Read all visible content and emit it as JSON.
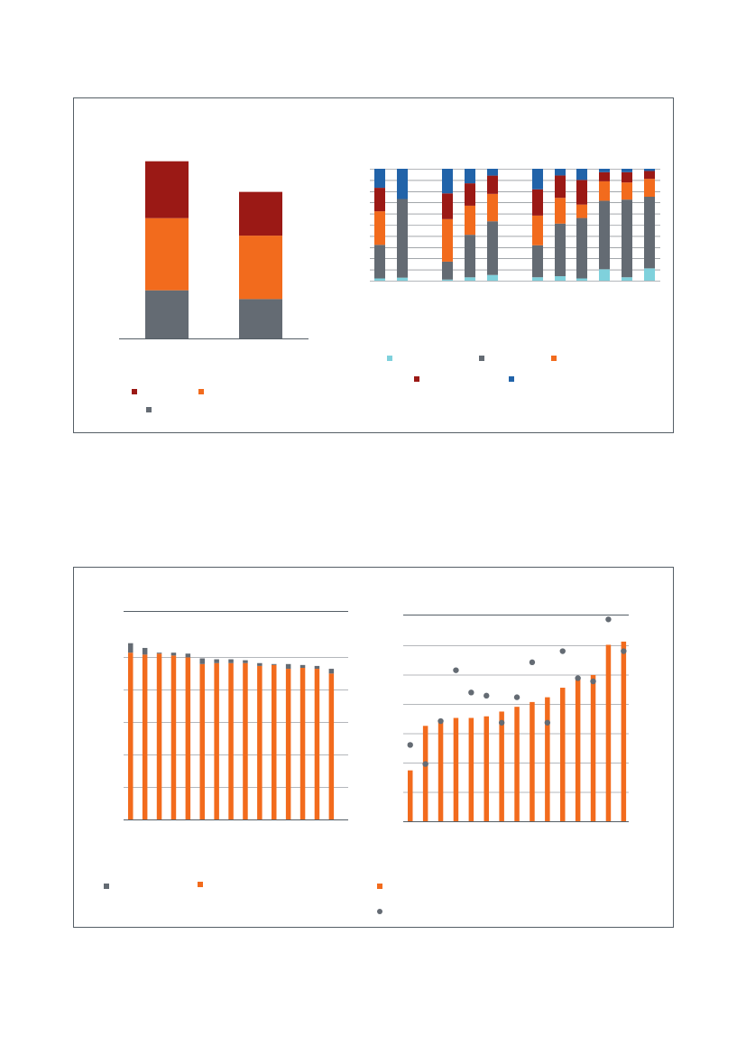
{
  "colors": {
    "dark_red": "#9b1915",
    "orange": "#f26b1d",
    "grey": "#646b73",
    "light_blue": "#7fd1dc",
    "blue": "#2163a9",
    "axis": "#555e66",
    "grid": "#6b7178"
  },
  "chart_data": [
    {
      "type": "bar",
      "stacked": true,
      "categories": [
        "",
        ""
      ],
      "series": [
        {
          "color_key": "grey",
          "values": [
            22,
            18
          ]
        },
        {
          "color_key": "orange",
          "values": [
            33,
            29
          ]
        },
        {
          "color_key": "dark_red",
          "values": [
            26,
            20
          ]
        }
      ],
      "ylim": [
        0,
        85
      ],
      "legend": "bottom-left"
    },
    {
      "type": "bar",
      "stacked": true,
      "percent": true,
      "groups": [
        2,
        3,
        6
      ],
      "categories": [
        "",
        "",
        "",
        "",
        "",
        "",
        "",
        "",
        "",
        "",
        ""
      ],
      "series": [
        {
          "color_key": "light_blue",
          "values": [
            2,
            1,
            1,
            3,
            5,
            3,
            4,
            2,
            10,
            3,
            11
          ]
        },
        {
          "color_key": "grey",
          "values": [
            30,
            26,
            16,
            38,
            47,
            28,
            47,
            54,
            60,
            68,
            64
          ]
        },
        {
          "color_key": "orange",
          "values": [
            30,
            0,
            38,
            26,
            24,
            26,
            23,
            12,
            17,
            15,
            16
          ]
        },
        {
          "color_key": "dark_red",
          "values": [
            21,
            0,
            23,
            20,
            16,
            23,
            20,
            22,
            8,
            9,
            7
          ]
        },
        {
          "color_key": "blue",
          "values": [
            17,
            10,
            22,
            13,
            6,
            18,
            6,
            10,
            3,
            3,
            2
          ]
        }
      ],
      "ylim": [
        0,
        100
      ],
      "legend": "bottom"
    },
    {
      "type": "bar",
      "stacked": true,
      "categories": [
        "",
        "",
        "",
        "",
        "",
        "",
        "",
        "",
        "",
        "",
        "",
        "",
        "",
        "",
        ""
      ],
      "series": [
        {
          "color_key": "orange",
          "values": [
            88,
            87,
            87.5,
            86.5,
            85.5,
            82,
            82.5,
            82.5,
            82.5,
            81,
            81.5,
            79.5,
            80,
            79.5,
            77
          ]
        },
        {
          "color_key": "grey",
          "values": [
            5,
            3.5,
            0.5,
            1.5,
            2,
            3,
            2,
            2,
            1.5,
            1.5,
            0.5,
            2.5,
            1.5,
            1.5,
            2.5
          ]
        }
      ],
      "ylim": [
        0,
        110
      ],
      "legend": "bottom"
    },
    {
      "type": "bar",
      "categories": [
        "",
        "",
        "",
        "",
        "",
        "",
        "",
        "",
        "",
        "",
        "",
        "",
        "",
        "",
        ""
      ],
      "series": [
        {
          "type": "bar",
          "color_key": "orange",
          "values": [
            16,
            30,
            31.5,
            32.5,
            32.5,
            33,
            34.5,
            36,
            37.5,
            39,
            42,
            45,
            46,
            55.5,
            56.5
          ]
        },
        {
          "type": "scatter",
          "color_key": "grey",
          "values": [
            24,
            18,
            31.5,
            47.5,
            40.5,
            39.5,
            31,
            39,
            50,
            31,
            53.5,
            45,
            44,
            63.5,
            53.5
          ]
        }
      ],
      "ylim": [
        0,
        65
      ],
      "legend": "bottom"
    }
  ]
}
